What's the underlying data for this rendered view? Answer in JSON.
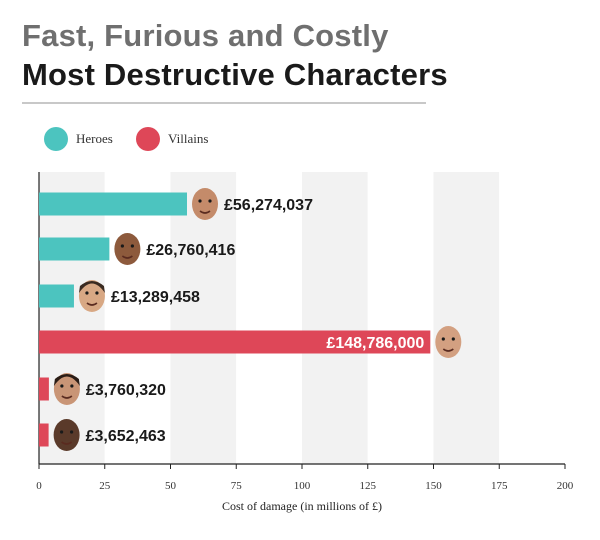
{
  "header": {
    "title": "Fast, Furious and Costly",
    "subtitle": "Most Destructive Characters"
  },
  "legend": [
    {
      "label": "Heroes",
      "color": "#4cc4bf"
    },
    {
      "label": "Villains",
      "color": "#de4758"
    }
  ],
  "chart_data": {
    "type": "bar",
    "orientation": "horizontal",
    "xlabel": "Cost of damage (in millions of £)",
    "xlim": [
      0,
      200
    ],
    "xticks": [
      0,
      25,
      50,
      75,
      100,
      125,
      150,
      175,
      200
    ],
    "grid": "alternating vertical bands",
    "legend_position": "top-left",
    "bars": [
      {
        "group": "Heroes",
        "value": 56.274037,
        "label": "£56,274,037",
        "face": "shaved-head-face",
        "color": "#4cc4bf"
      },
      {
        "group": "Heroes",
        "value": 26.760416,
        "label": "£26,760,416",
        "face": "smiling-bald-face",
        "color": "#4cc4bf"
      },
      {
        "group": "Heroes",
        "value": 13.289458,
        "label": "£13,289,458",
        "face": "short-hair-face",
        "color": "#4cc4bf"
      },
      {
        "group": "Villains",
        "value": 148.786,
        "label": "£148,786,000",
        "face": "grinning-bald-face",
        "color": "#de4758"
      },
      {
        "group": "Villains",
        "value": 3.76032,
        "label": "£3,760,320",
        "face": "dark-hair-face",
        "color": "#de4758"
      },
      {
        "group": "Villains",
        "value": 3.652463,
        "label": "£3,652,463",
        "face": "dark-bald-face",
        "color": "#de4758"
      }
    ]
  }
}
